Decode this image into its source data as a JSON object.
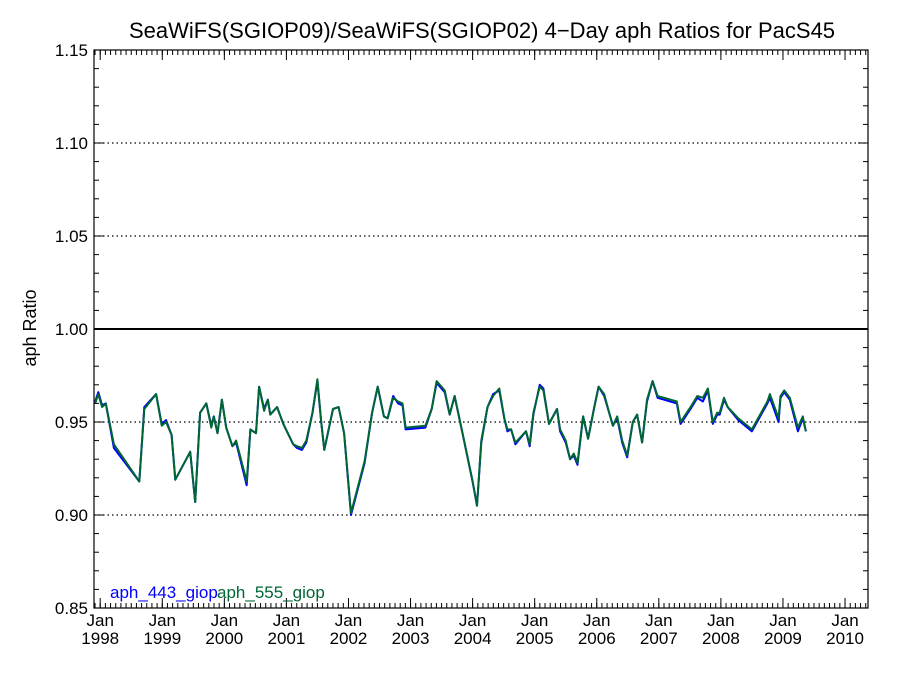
{
  "chart_data": {
    "type": "line",
    "title": "SeaWiFS(SGIOP09)/SeaWiFS(SGIOP02) 4−Day aph Ratios for PacS45",
    "xlabel": "",
    "ylabel": "aph Ratio",
    "xlim": [
      1997.9,
      2010.37
    ],
    "ylim": [
      0.85,
      1.15
    ],
    "yticks": [
      0.85,
      0.9,
      0.95,
      1.0,
      1.05,
      1.1,
      1.15
    ],
    "ytick_labels": [
      "0.85",
      "0.90",
      "0.95",
      "1.00",
      "1.05",
      "1.10",
      "1.15"
    ],
    "dotted_gridlines": [
      0.9,
      0.95,
      1.05,
      1.1
    ],
    "reference_line": 1.0,
    "xticks": [
      {
        "month": "Jan",
        "year": "1998",
        "x": 1998
      },
      {
        "month": "Jan",
        "year": "1999",
        "x": 1999
      },
      {
        "month": "Jan",
        "year": "2000",
        "x": 2000
      },
      {
        "month": "Jan",
        "year": "2001",
        "x": 2001
      },
      {
        "month": "Jan",
        "year": "2002",
        "x": 2002
      },
      {
        "month": "Jan",
        "year": "2003",
        "x": 2003
      },
      {
        "month": "Jan",
        "year": "2004",
        "x": 2004
      },
      {
        "month": "Jan",
        "year": "2005",
        "x": 2005
      },
      {
        "month": "Jan",
        "year": "2006",
        "x": 2006
      },
      {
        "month": "Jan",
        "year": "2007",
        "x": 2007
      },
      {
        "month": "Jan",
        "year": "2008",
        "x": 2008
      },
      {
        "month": "Jan",
        "year": "2009",
        "x": 2009
      },
      {
        "month": "Jan",
        "year": "2010",
        "x": 2010
      }
    ],
    "minor_ticks_per_year": 12,
    "legend_position": "bottom-left",
    "series": [
      {
        "name": "aph_443_giop",
        "color": "#0000ff",
        "points": [
          [
            1997.92,
            0.961
          ],
          [
            1997.97,
            0.966
          ],
          [
            1998.03,
            0.959
          ],
          [
            1998.09,
            0.96
          ],
          [
            1998.22,
            0.936
          ],
          [
            1998.63,
            0.918
          ],
          [
            1998.71,
            0.958
          ],
          [
            1998.9,
            0.965
          ],
          [
            1998.99,
            0.949
          ],
          [
            1999.06,
            0.951
          ],
          [
            1999.15,
            0.943
          ],
          [
            1999.21,
            0.919
          ],
          [
            1999.45,
            0.934
          ],
          [
            1999.53,
            0.907
          ],
          [
            1999.61,
            0.955
          ],
          [
            1999.71,
            0.96
          ],
          [
            1999.79,
            0.948
          ],
          [
            1999.83,
            0.953
          ],
          [
            1999.89,
            0.944
          ],
          [
            1999.96,
            0.962
          ],
          [
            2000.03,
            0.947
          ],
          [
            2000.13,
            0.937
          ],
          [
            2000.19,
            0.939
          ],
          [
            2000.36,
            0.916
          ],
          [
            2000.42,
            0.946
          ],
          [
            2000.51,
            0.944
          ],
          [
            2000.56,
            0.969
          ],
          [
            2000.64,
            0.957
          ],
          [
            2000.7,
            0.962
          ],
          [
            2000.74,
            0.954
          ],
          [
            2000.85,
            0.958
          ],
          [
            2000.95,
            0.949
          ],
          [
            2001.11,
            0.938
          ],
          [
            2001.17,
            0.936
          ],
          [
            2001.25,
            0.935
          ],
          [
            2001.32,
            0.939
          ],
          [
            2001.42,
            0.955
          ],
          [
            2001.5,
            0.972
          ],
          [
            2001.56,
            0.95
          ],
          [
            2001.61,
            0.935
          ],
          [
            2001.75,
            0.957
          ],
          [
            2001.84,
            0.958
          ],
          [
            2001.93,
            0.944
          ],
          [
            2002.04,
            0.9
          ],
          [
            2002.26,
            0.928
          ],
          [
            2002.38,
            0.955
          ],
          [
            2002.47,
            0.969
          ],
          [
            2002.57,
            0.953
          ],
          [
            2002.63,
            0.952
          ],
          [
            2002.72,
            0.964
          ],
          [
            2002.8,
            0.96
          ],
          [
            2002.87,
            0.959
          ],
          [
            2002.92,
            0.946
          ],
          [
            2003.24,
            0.947
          ],
          [
            2003.34,
            0.957
          ],
          [
            2003.42,
            0.971
          ],
          [
            2003.55,
            0.966
          ],
          [
            2003.63,
            0.954
          ],
          [
            2003.71,
            0.964
          ],
          [
            2003.85,
            0.942
          ],
          [
            2004.0,
            0.918
          ],
          [
            2004.07,
            0.905
          ],
          [
            2004.14,
            0.939
          ],
          [
            2004.24,
            0.958
          ],
          [
            2004.33,
            0.965
          ],
          [
            2004.43,
            0.967
          ],
          [
            2004.51,
            0.952
          ],
          [
            2004.56,
            0.945
          ],
          [
            2004.62,
            0.946
          ],
          [
            2004.69,
            0.938
          ],
          [
            2004.86,
            0.945
          ],
          [
            2004.92,
            0.937
          ],
          [
            2004.98,
            0.954
          ],
          [
            2005.08,
            0.97
          ],
          [
            2005.14,
            0.968
          ],
          [
            2005.23,
            0.949
          ],
          [
            2005.36,
            0.957
          ],
          [
            2005.41,
            0.945
          ],
          [
            2005.5,
            0.939
          ],
          [
            2005.57,
            0.93
          ],
          [
            2005.63,
            0.932
          ],
          [
            2005.69,
            0.927
          ],
          [
            2005.78,
            0.953
          ],
          [
            2005.86,
            0.941
          ],
          [
            2005.96,
            0.958
          ],
          [
            2006.03,
            0.969
          ],
          [
            2006.12,
            0.964
          ],
          [
            2006.19,
            0.956
          ],
          [
            2006.26,
            0.948
          ],
          [
            2006.33,
            0.952
          ],
          [
            2006.41,
            0.939
          ],
          [
            2006.49,
            0.931
          ],
          [
            2006.58,
            0.95
          ],
          [
            2006.65,
            0.954
          ],
          [
            2006.73,
            0.939
          ],
          [
            2006.81,
            0.961
          ],
          [
            2006.9,
            0.972
          ],
          [
            2006.98,
            0.963
          ],
          [
            2007.29,
            0.96
          ],
          [
            2007.35,
            0.949
          ],
          [
            2007.51,
            0.957
          ],
          [
            2007.62,
            0.963
          ],
          [
            2007.71,
            0.961
          ],
          [
            2007.79,
            0.967
          ],
          [
            2007.87,
            0.949
          ],
          [
            2007.94,
            0.954
          ],
          [
            2007.98,
            0.954
          ],
          [
            2008.05,
            0.962
          ],
          [
            2008.11,
            0.958
          ],
          [
            2008.28,
            0.951
          ],
          [
            2008.5,
            0.945
          ],
          [
            2008.75,
            0.96
          ],
          [
            2008.79,
            0.963
          ],
          [
            2008.93,
            0.95
          ],
          [
            2008.96,
            0.963
          ],
          [
            2009.02,
            0.966
          ],
          [
            2009.11,
            0.962
          ],
          [
            2009.24,
            0.945
          ],
          [
            2009.32,
            0.952
          ],
          [
            2009.37,
            0.945
          ]
        ]
      },
      {
        "name": "aph_555_giop",
        "color": "#006633",
        "points": [
          [
            1997.92,
            0.96
          ],
          [
            1997.97,
            0.965
          ],
          [
            1998.03,
            0.958
          ],
          [
            1998.09,
            0.96
          ],
          [
            1998.22,
            0.938
          ],
          [
            1998.63,
            0.918
          ],
          [
            1998.71,
            0.957
          ],
          [
            1998.9,
            0.965
          ],
          [
            1998.99,
            0.948
          ],
          [
            1999.06,
            0.95
          ],
          [
            1999.15,
            0.943
          ],
          [
            1999.21,
            0.919
          ],
          [
            1999.45,
            0.934
          ],
          [
            1999.53,
            0.907
          ],
          [
            1999.61,
            0.955
          ],
          [
            1999.71,
            0.96
          ],
          [
            1999.79,
            0.947
          ],
          [
            1999.83,
            0.953
          ],
          [
            1999.89,
            0.944
          ],
          [
            1999.96,
            0.962
          ],
          [
            2000.03,
            0.947
          ],
          [
            2000.13,
            0.937
          ],
          [
            2000.19,
            0.94
          ],
          [
            2000.36,
            0.918
          ],
          [
            2000.42,
            0.946
          ],
          [
            2000.51,
            0.944
          ],
          [
            2000.56,
            0.969
          ],
          [
            2000.64,
            0.956
          ],
          [
            2000.7,
            0.962
          ],
          [
            2000.74,
            0.954
          ],
          [
            2000.85,
            0.958
          ],
          [
            2000.95,
            0.949
          ],
          [
            2001.11,
            0.938
          ],
          [
            2001.17,
            0.937
          ],
          [
            2001.25,
            0.936
          ],
          [
            2001.32,
            0.94
          ],
          [
            2001.42,
            0.955
          ],
          [
            2001.5,
            0.973
          ],
          [
            2001.56,
            0.95
          ],
          [
            2001.61,
            0.935
          ],
          [
            2001.75,
            0.957
          ],
          [
            2001.84,
            0.958
          ],
          [
            2001.93,
            0.944
          ],
          [
            2002.04,
            0.901
          ],
          [
            2002.26,
            0.929
          ],
          [
            2002.38,
            0.955
          ],
          [
            2002.47,
            0.969
          ],
          [
            2002.57,
            0.953
          ],
          [
            2002.63,
            0.952
          ],
          [
            2002.72,
            0.963
          ],
          [
            2002.8,
            0.961
          ],
          [
            2002.87,
            0.96
          ],
          [
            2002.92,
            0.947
          ],
          [
            2003.24,
            0.948
          ],
          [
            2003.34,
            0.957
          ],
          [
            2003.42,
            0.972
          ],
          [
            2003.55,
            0.967
          ],
          [
            2003.63,
            0.954
          ],
          [
            2003.71,
            0.964
          ],
          [
            2003.85,
            0.942
          ],
          [
            2004.0,
            0.918
          ],
          [
            2004.07,
            0.905
          ],
          [
            2004.14,
            0.94
          ],
          [
            2004.24,
            0.958
          ],
          [
            2004.33,
            0.964
          ],
          [
            2004.43,
            0.968
          ],
          [
            2004.51,
            0.952
          ],
          [
            2004.56,
            0.946
          ],
          [
            2004.62,
            0.946
          ],
          [
            2004.69,
            0.939
          ],
          [
            2004.86,
            0.945
          ],
          [
            2004.92,
            0.938
          ],
          [
            2004.98,
            0.955
          ],
          [
            2005.08,
            0.969
          ],
          [
            2005.14,
            0.967
          ],
          [
            2005.23,
            0.949
          ],
          [
            2005.36,
            0.957
          ],
          [
            2005.41,
            0.946
          ],
          [
            2005.5,
            0.94
          ],
          [
            2005.57,
            0.93
          ],
          [
            2005.63,
            0.933
          ],
          [
            2005.69,
            0.928
          ],
          [
            2005.78,
            0.953
          ],
          [
            2005.86,
            0.941
          ],
          [
            2005.96,
            0.958
          ],
          [
            2006.03,
            0.969
          ],
          [
            2006.12,
            0.965
          ],
          [
            2006.19,
            0.956
          ],
          [
            2006.26,
            0.948
          ],
          [
            2006.33,
            0.953
          ],
          [
            2006.41,
            0.94
          ],
          [
            2006.49,
            0.932
          ],
          [
            2006.58,
            0.95
          ],
          [
            2006.65,
            0.954
          ],
          [
            2006.73,
            0.939
          ],
          [
            2006.81,
            0.962
          ],
          [
            2006.9,
            0.972
          ],
          [
            2006.98,
            0.964
          ],
          [
            2007.29,
            0.961
          ],
          [
            2007.35,
            0.95
          ],
          [
            2007.51,
            0.958
          ],
          [
            2007.62,
            0.964
          ],
          [
            2007.71,
            0.963
          ],
          [
            2007.79,
            0.968
          ],
          [
            2007.87,
            0.95
          ],
          [
            2007.94,
            0.955
          ],
          [
            2007.98,
            0.955
          ],
          [
            2008.05,
            0.963
          ],
          [
            2008.11,
            0.958
          ],
          [
            2008.28,
            0.952
          ],
          [
            2008.5,
            0.946
          ],
          [
            2008.75,
            0.961
          ],
          [
            2008.79,
            0.965
          ],
          [
            2008.93,
            0.952
          ],
          [
            2008.96,
            0.964
          ],
          [
            2009.02,
            0.967
          ],
          [
            2009.11,
            0.963
          ],
          [
            2009.24,
            0.947
          ],
          [
            2009.32,
            0.953
          ],
          [
            2009.37,
            0.945
          ]
        ]
      }
    ]
  }
}
